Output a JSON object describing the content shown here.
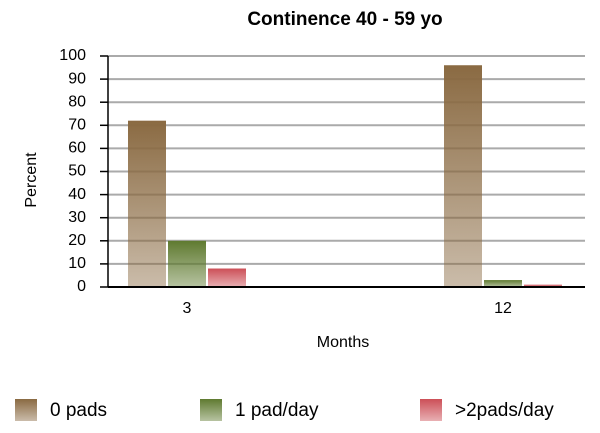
{
  "chart_data": {
    "type": "bar",
    "title": "Continence 40 - 59 yo",
    "x_label": "Months",
    "y_label": "Percent",
    "categories": [
      "3",
      "12"
    ],
    "series": [
      {
        "name": "0 pads",
        "color": "#8a6a42",
        "values": [
          72,
          96
        ]
      },
      {
        "name": "1 pad/day",
        "color": "#5f7a30",
        "values": [
          20,
          3
        ]
      },
      {
        "name": ">2pads/day",
        "color": "#cc4f57",
        "values": [
          8,
          1
        ]
      }
    ],
    "ylim": [
      0,
      100
    ],
    "yticks": [
      0,
      10,
      20,
      30,
      40,
      50,
      60,
      70,
      80,
      90,
      100
    ],
    "grid": true,
    "legend": "bottom"
  }
}
